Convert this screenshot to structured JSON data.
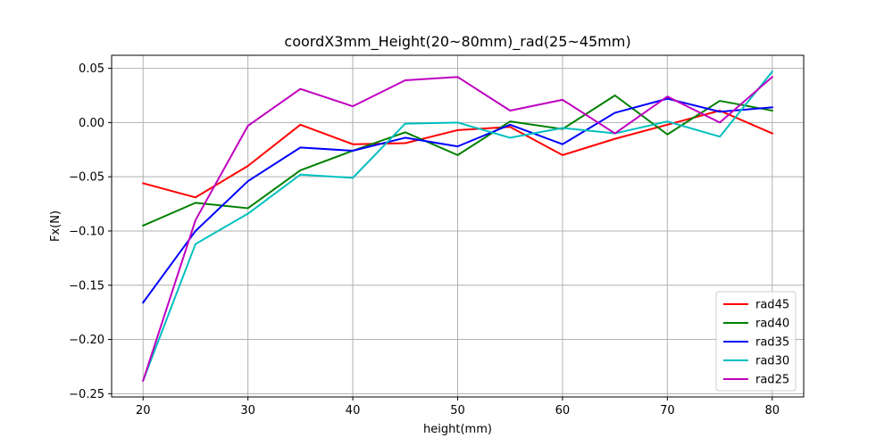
{
  "chart_data": {
    "type": "line",
    "title": "coordX3mm_Height(20~80mm)_rad(25~45mm)",
    "xlabel": "height(mm)",
    "ylabel": "Fx(N)",
    "xlim": [
      17.0,
      83.0
    ],
    "ylim": [
      -0.253,
      0.062
    ],
    "xticks": [
      20,
      30,
      40,
      50,
      60,
      70,
      80
    ],
    "xtick_labels": [
      "20",
      "30",
      "40",
      "50",
      "60",
      "70",
      "80"
    ],
    "yticks": [
      -0.25,
      -0.2,
      -0.15,
      -0.1,
      -0.05,
      0.0,
      0.05
    ],
    "ytick_labels": [
      "−0.25",
      "−0.20",
      "−0.15",
      "−0.10",
      "−0.05",
      "0.00",
      "0.05"
    ],
    "grid": true,
    "legend_position": "lower-right",
    "x": [
      20,
      25,
      30,
      35,
      40,
      45,
      50,
      55,
      60,
      65,
      70,
      75,
      80
    ],
    "series": [
      {
        "name": "rad45",
        "color": "#ff0000",
        "values": [
          -0.056,
          -0.069,
          -0.04,
          -0.002,
          -0.02,
          -0.019,
          -0.007,
          -0.004,
          -0.03,
          -0.015,
          -0.002,
          0.011,
          -0.01
        ]
      },
      {
        "name": "rad40",
        "color": "#008000",
        "values": [
          -0.095,
          -0.074,
          -0.079,
          -0.044,
          -0.026,
          -0.009,
          -0.03,
          0.001,
          -0.006,
          0.025,
          -0.011,
          0.02,
          0.011
        ]
      },
      {
        "name": "rad35",
        "color": "#0000ff",
        "values": [
          -0.166,
          -0.1,
          -0.054,
          -0.023,
          -0.026,
          -0.014,
          -0.022,
          -0.002,
          -0.02,
          0.009,
          0.022,
          0.01,
          0.014
        ]
      },
      {
        "name": "rad30",
        "color": "#00bfbf",
        "values": [
          -0.238,
          -0.112,
          -0.084,
          -0.048,
          -0.051,
          -0.001,
          0.0,
          -0.014,
          -0.005,
          -0.01,
          0.001,
          -0.013,
          0.047
        ]
      },
      {
        "name": "rad25",
        "color": "#bf00bf",
        "values": [
          -0.238,
          -0.09,
          -0.003,
          0.031,
          0.015,
          0.039,
          0.042,
          0.011,
          0.021,
          -0.01,
          0.024,
          0.0,
          0.042
        ]
      }
    ]
  }
}
